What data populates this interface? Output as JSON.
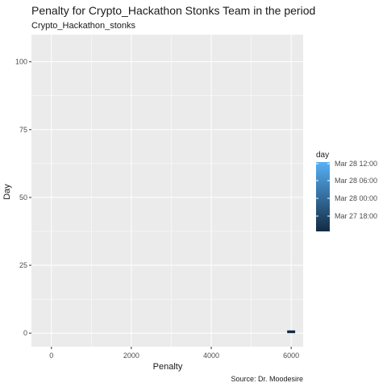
{
  "chart_data": {
    "type": "heatmap",
    "title": "Penalty for Crypto_Hackathon Stonks Team in the period",
    "subtitle": "Crypto_Hackathon_stonks",
    "xlabel": "Penalty",
    "ylabel": "Day",
    "caption": "Source: Dr. Moodesire",
    "xlim": [
      -500,
      6300
    ],
    "ylim": [
      -5,
      110
    ],
    "x_ticks": [
      0,
      2000,
      4000,
      6000
    ],
    "y_ticks": [
      0,
      25,
      50,
      75,
      100
    ],
    "x_tick_labels": [
      "0",
      "2000",
      "4000",
      "6000"
    ],
    "y_tick_labels": [
      "0",
      "25",
      "50",
      "75",
      "100"
    ],
    "grid": true,
    "legend": {
      "title": "day",
      "position": "right",
      "labels": [
        "Mar 28 12:00",
        "Mar 28 06:00",
        "Mar 28 00:00",
        "Mar 27 18:00"
      ],
      "colors": {
        "low": "#132b43",
        "high": "#56b1f7"
      }
    },
    "tiles": [
      {
        "x_from": 5900,
        "x_to": 6100,
        "y_from": 0,
        "y_to": 1,
        "color": "#132b43"
      }
    ],
    "colors": {
      "panel": "#ebebeb",
      "grid": "#ffffff"
    }
  }
}
